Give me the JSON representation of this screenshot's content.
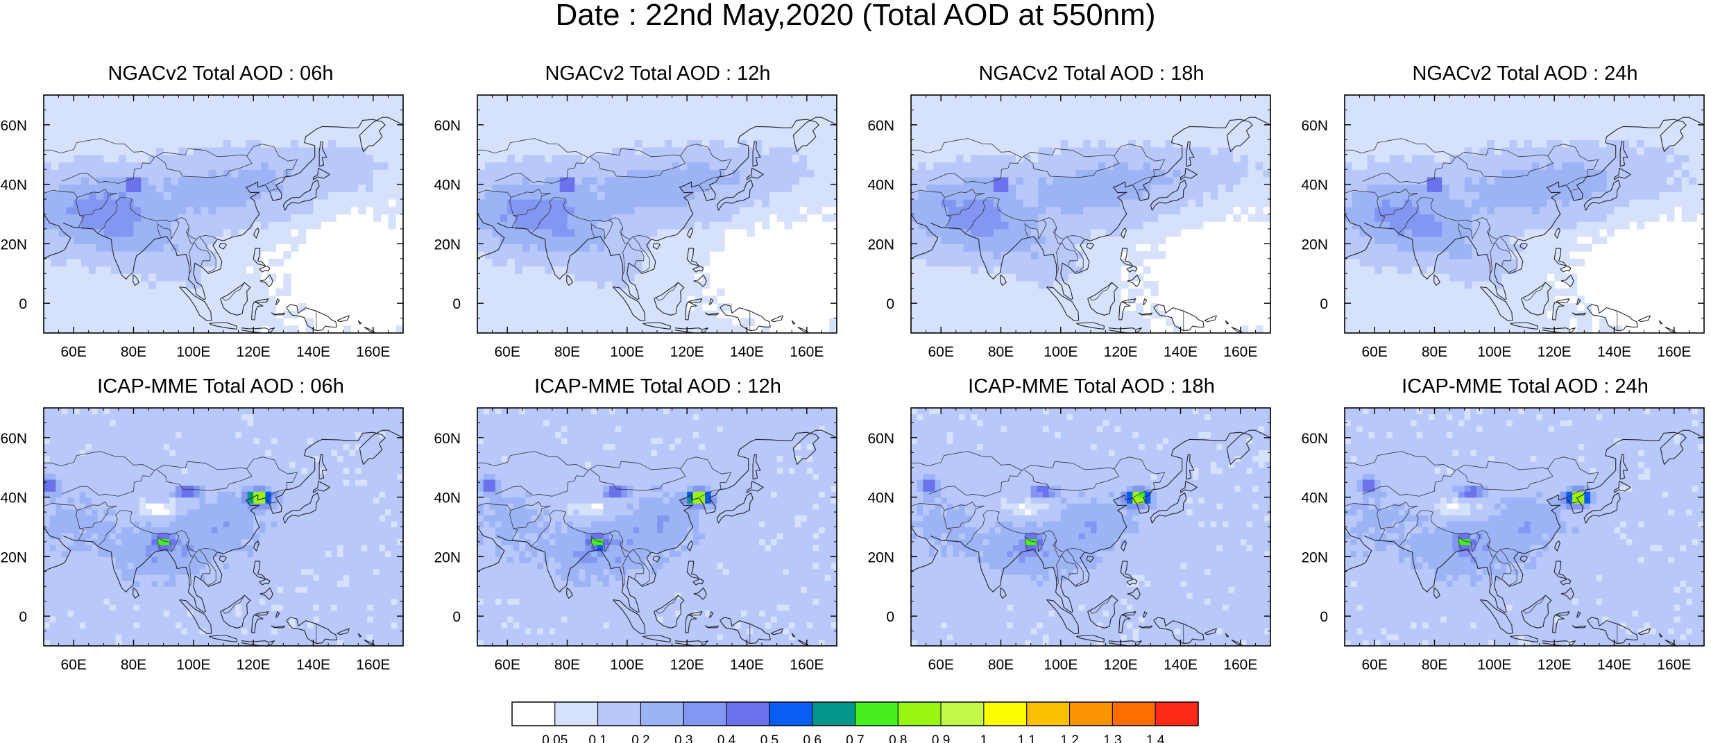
{
  "figure": {
    "title": "Date : 22nd May,2020 (Total AOD at 550nm)"
  },
  "panels": [
    {
      "title": "NGACv2 Total AOD : 06h",
      "model": "NGACv2",
      "forecast_hour": "06h"
    },
    {
      "title": "NGACv2 Total AOD : 12h",
      "model": "NGACv2",
      "forecast_hour": "12h"
    },
    {
      "title": "NGACv2 Total AOD : 18h",
      "model": "NGACv2",
      "forecast_hour": "18h"
    },
    {
      "title": "NGACv2 Total AOD : 24h",
      "model": "NGACv2",
      "forecast_hour": "24h"
    },
    {
      "title": "ICAP-MME Total AOD : 06h",
      "model": "ICAP-MME",
      "forecast_hour": "06h"
    },
    {
      "title": "ICAP-MME Total AOD : 12h",
      "model": "ICAP-MME",
      "forecast_hour": "12h"
    },
    {
      "title": "ICAP-MME Total AOD : 18h",
      "model": "ICAP-MME",
      "forecast_hour": "18h"
    },
    {
      "title": "ICAP-MME Total AOD : 24h",
      "model": "ICAP-MME",
      "forecast_hour": "24h"
    }
  ],
  "axes": {
    "lon_range": [
      50,
      170
    ],
    "lat_range": [
      -10,
      70
    ],
    "lon_ticks": [
      60,
      80,
      100,
      120,
      140,
      160
    ],
    "lon_tick_labels": [
      "60E",
      "80E",
      "100E",
      "120E",
      "140E",
      "160E"
    ],
    "lat_ticks": [
      0,
      20,
      40,
      60
    ],
    "lat_tick_labels": [
      "0",
      "20N",
      "40N",
      "60N"
    ]
  },
  "colorbar": {
    "labels": [
      "0.05",
      "0.1",
      "0.2",
      "0.3",
      "0.4",
      "0.5",
      "0.6",
      "0.7",
      "0.8",
      "0.9",
      "1",
      "1.1",
      "1.2",
      "1.3",
      "1.4"
    ],
    "colors": [
      "#ffffff",
      "#d6e2fc",
      "#b8c8fa",
      "#9cb4f6",
      "#8296f2",
      "#6a72ec",
      "#0a5cf4",
      "#00968c",
      "#46f01e",
      "#98f410",
      "#c2f848",
      "#fdfd00",
      "#fcc000",
      "#fc9400",
      "#fc6e00",
      "#fc2a16"
    ]
  }
}
